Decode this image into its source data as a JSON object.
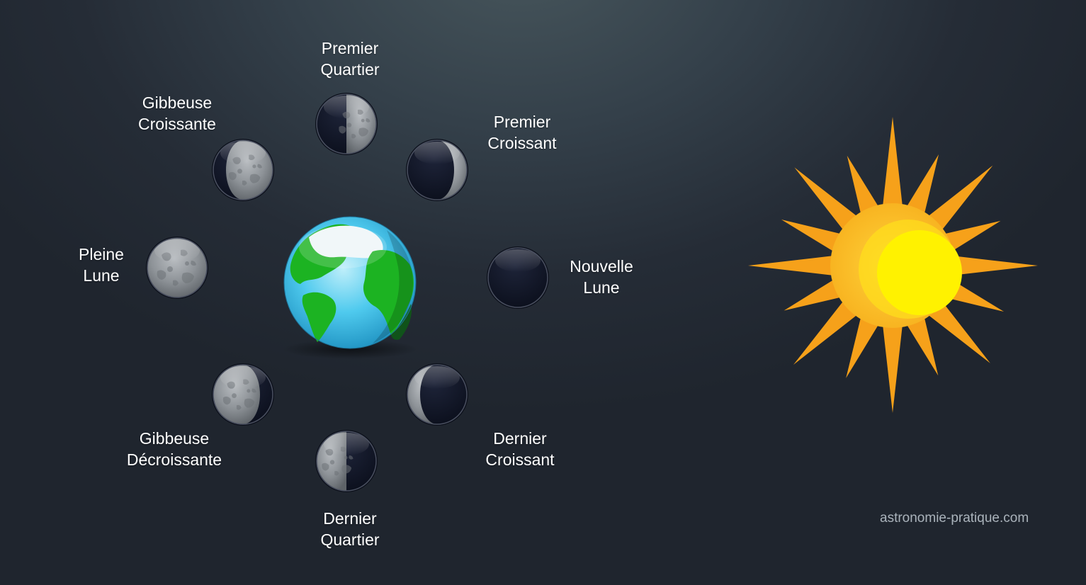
{
  "phases": {
    "premier_quartier": {
      "line1": "Premier",
      "line2": "Quartier"
    },
    "premier_croissant": {
      "line1": "Premier",
      "line2": "Croissant"
    },
    "nouvelle_lune": {
      "line1": "Nouvelle",
      "line2": "Lune"
    },
    "dernier_croissant": {
      "line1": "Dernier",
      "line2": "Croissant"
    },
    "dernier_quartier": {
      "line1": "Dernier",
      "line2": "Quartier"
    },
    "gibbeuse_decroissante": {
      "line1": "Gibbeuse",
      "line2": "Décroissante"
    },
    "pleine_lune": {
      "line1": "Pleine",
      "line2": "Lune"
    },
    "gibbeuse_croissante": {
      "line1": "Gibbeuse",
      "line2": "Croissante"
    }
  },
  "credit": "astronomie-pratique.com",
  "icons": {
    "earth": "earth-globe-icon",
    "sun": "sun-icon",
    "moon": "moon-phase-icon"
  },
  "colors": {
    "moon_dark": "#0f1426",
    "moon_lit": "#8d9297",
    "sun_rays": "#f7a21b",
    "sun_core": "#ffee00",
    "ocean": "#3fc4ea",
    "land": "#1db522"
  }
}
